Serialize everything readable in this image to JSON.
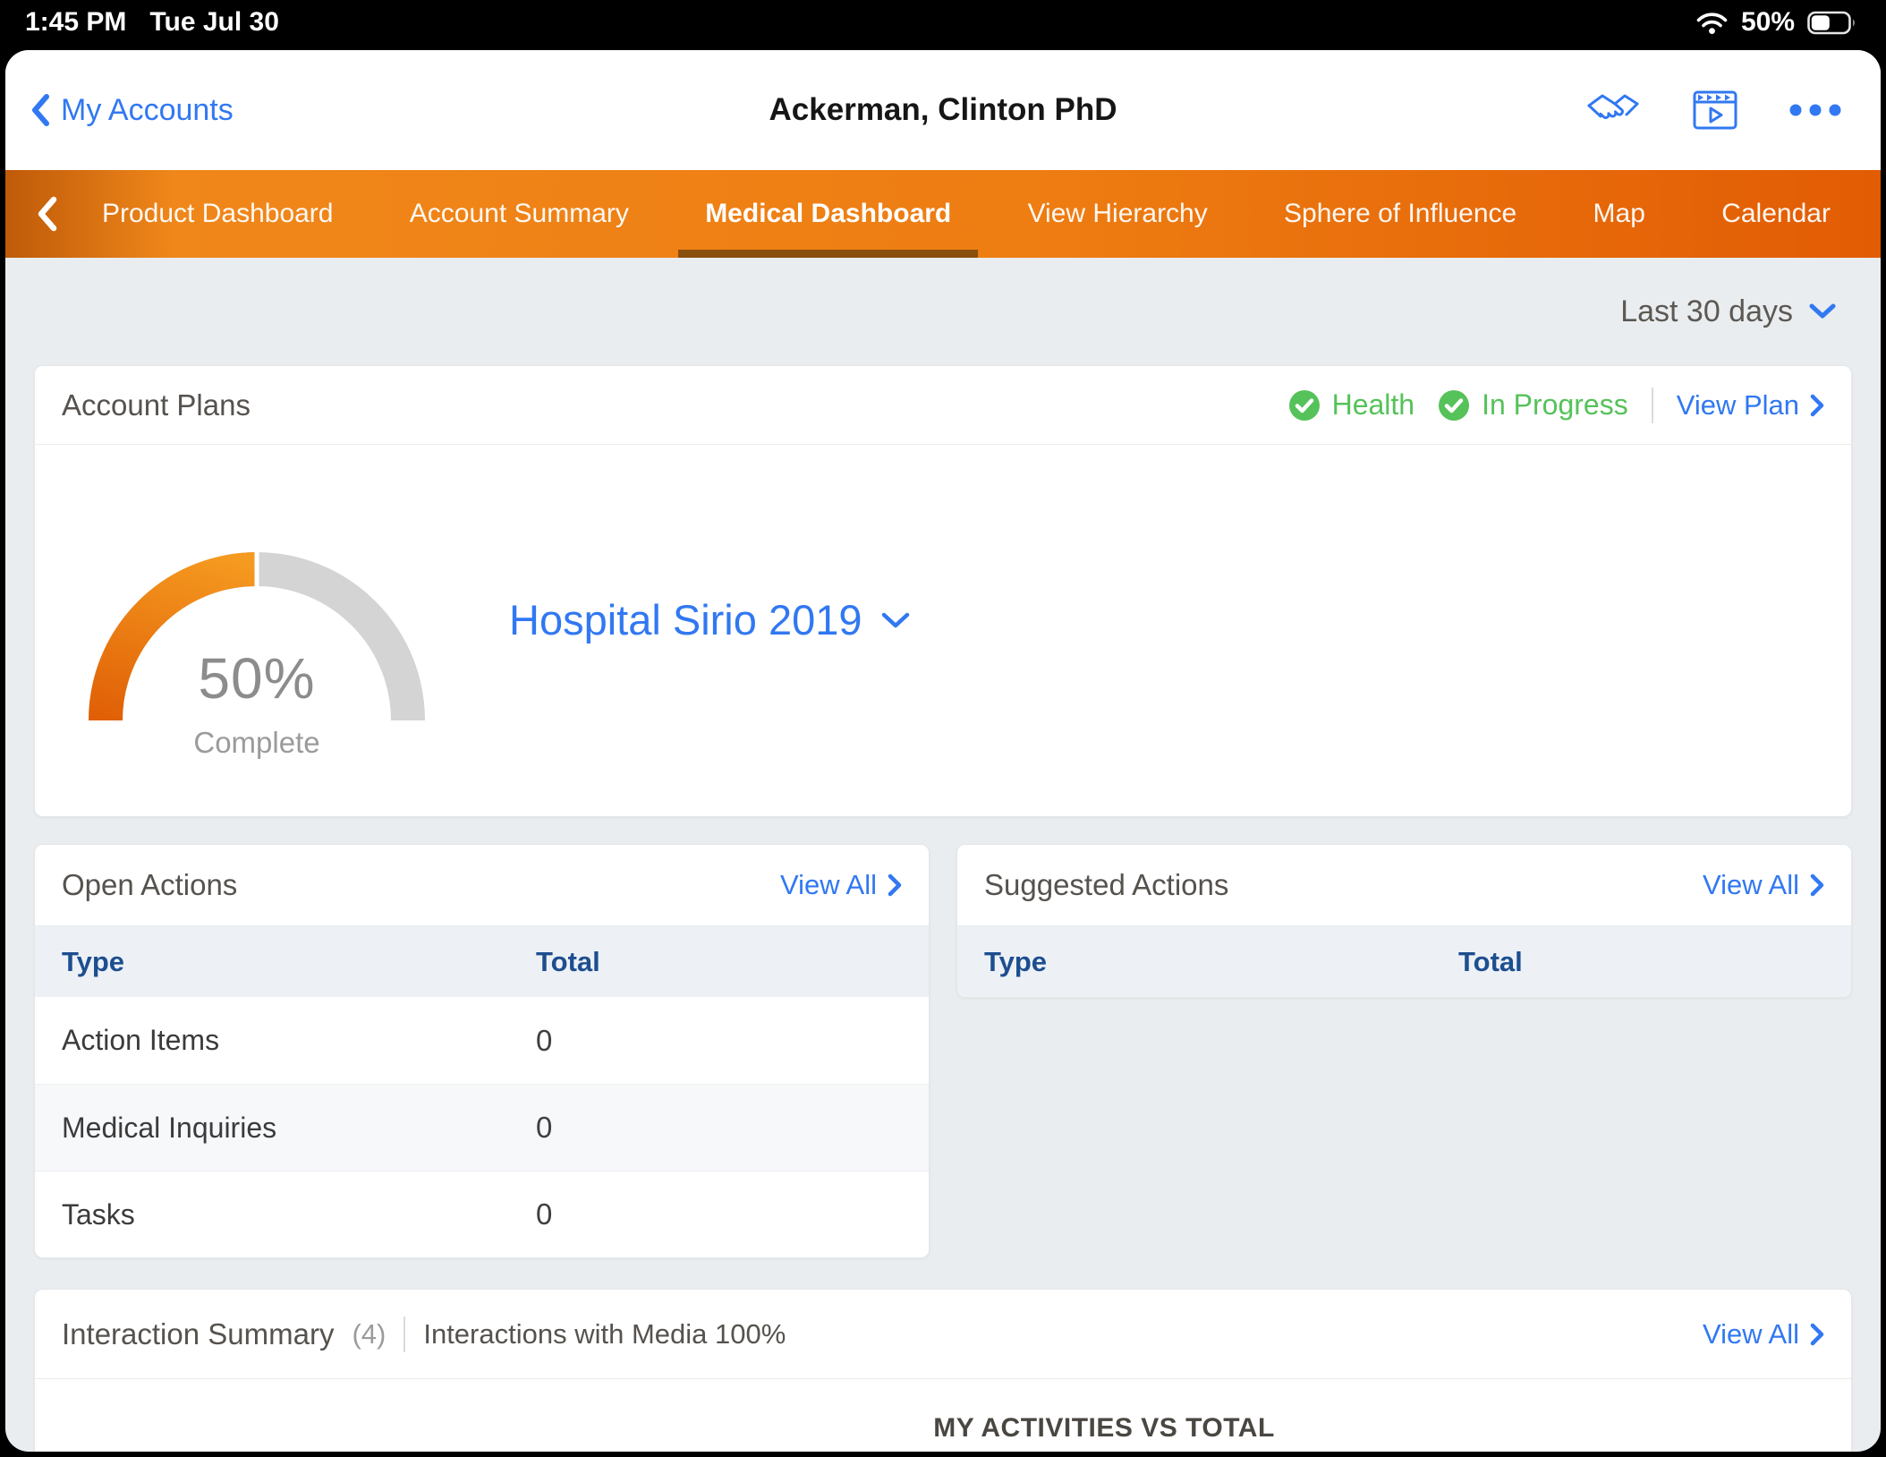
{
  "colors": {
    "accent-blue": "#3178f2",
    "nav-orange-left": "#bf5a09",
    "nav-orange-mid": "#f0871a",
    "nav-orange-right": "#e25c04",
    "active-tab-underline": "#8a4e0d",
    "success-green": "#55c25a",
    "table-header-navy": "#1d4e8f",
    "gauge-gray": "#d4d4d4",
    "page-bg": "#eaedef"
  },
  "status_bar": {
    "time": "1:45 PM",
    "date": "Tue Jul 30",
    "battery_percent": "50%"
  },
  "header": {
    "back_label": "My Accounts",
    "title": "Ackerman, Clinton PhD",
    "icons": [
      "handshake-icon",
      "media-player-icon",
      "ellipsis-icon"
    ]
  },
  "nav": {
    "tabs": [
      {
        "label": "Product Dashboard",
        "active": false
      },
      {
        "label": "Account Summary",
        "active": false
      },
      {
        "label": "Medical Dashboard",
        "active": true
      },
      {
        "label": "View Hierarchy",
        "active": false
      },
      {
        "label": "Sphere of Influence",
        "active": false
      },
      {
        "label": "Map",
        "active": false
      },
      {
        "label": "Calendar",
        "active": false
      }
    ]
  },
  "filters": {
    "date_range": "Last 30 days"
  },
  "account_plans": {
    "title": "Account Plans",
    "statuses": [
      {
        "label": "Health"
      },
      {
        "label": "In Progress"
      }
    ],
    "view_plan_label": "View Plan",
    "plan_name": "Hospital Sirio 2019",
    "gauge": {
      "percent_label": "50%",
      "value": 50,
      "caption": "Complete"
    }
  },
  "open_actions": {
    "title": "Open Actions",
    "view_all_label": "View All",
    "columns": [
      "Type",
      "Total"
    ],
    "rows": [
      {
        "type": "Action Items",
        "total": "0"
      },
      {
        "type": "Medical Inquiries",
        "total": "0"
      },
      {
        "type": "Tasks",
        "total": "0"
      }
    ]
  },
  "suggested_actions": {
    "title": "Suggested Actions",
    "view_all_label": "View All",
    "columns": [
      "Type",
      "Total"
    ],
    "rows": []
  },
  "interaction_summary": {
    "title": "Interaction Summary",
    "count": "(4)",
    "subtitle": "Interactions with Media 100%",
    "view_all_label": "View All",
    "chart_section_label": "MY ACTIVITIES VS TOTAL"
  }
}
